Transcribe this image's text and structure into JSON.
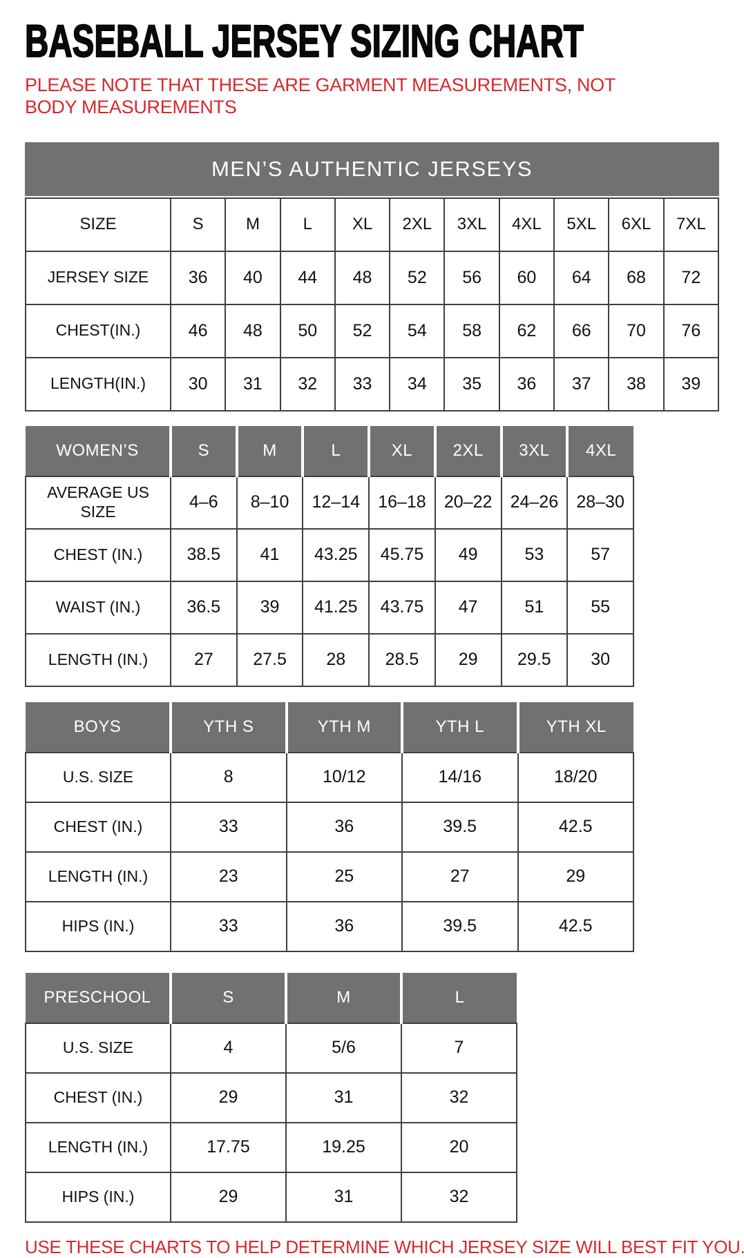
{
  "page": {
    "title": "BASEBALL JERSEY SIZING CHART",
    "note": "PLEASE NOTE THAT THESE ARE GARMENT MEASUREMENTS, NOT BODY MEASUREMENTS",
    "footer": "USE THESE CHARTS TO HELP DETERMINE WHICH JERSEY SIZE WILL BEST FIT YOU.",
    "colors": {
      "accent_red": "#d7282d",
      "header_gray": "#717171",
      "border_gray": "#3f3f3f",
      "text_black": "#111111"
    }
  },
  "tables": {
    "mens": {
      "banner": "MEN’S AUTHENTIC JERSEYS",
      "header": [
        "SIZE",
        "S",
        "M",
        "L",
        "XL",
        "2XL",
        "3XL",
        "4XL",
        "5XL",
        "6XL",
        "7XL"
      ],
      "rows": [
        {
          "label": "JERSEY SIZE",
          "values": [
            "36",
            "40",
            "44",
            "48",
            "52",
            "56",
            "60",
            "64",
            "68",
            "72"
          ]
        },
        {
          "label": "CHEST(IN.)",
          "values": [
            "46",
            "48",
            "50",
            "52",
            "54",
            "58",
            "62",
            "66",
            "70",
            "76"
          ]
        },
        {
          "label": "LENGTH(IN.)",
          "values": [
            "30",
            "31",
            "32",
            "33",
            "34",
            "35",
            "36",
            "37",
            "38",
            "39"
          ]
        }
      ]
    },
    "womens": {
      "header": [
        "WOMEN’S",
        "S",
        "M",
        "L",
        "XL",
        "2XL",
        "3XL",
        "4XL"
      ],
      "rows": [
        {
          "label": "AVERAGE US SIZE",
          "values": [
            "4–6",
            "8–10",
            "12–14",
            "16–18",
            "20–22",
            "24–26",
            "28–30"
          ]
        },
        {
          "label": "CHEST (IN.)",
          "values": [
            "38.5",
            "41",
            "43.25",
            "45.75",
            "49",
            "53",
            "57"
          ]
        },
        {
          "label": "WAIST (IN.)",
          "values": [
            "36.5",
            "39",
            "41.25",
            "43.75",
            "47",
            "51",
            "55"
          ]
        },
        {
          "label": "LENGTH (IN.)",
          "values": [
            "27",
            "27.5",
            "28",
            "28.5",
            "29",
            "29.5",
            "30"
          ]
        }
      ]
    },
    "boys": {
      "header": [
        "BOYS",
        "YTH S",
        "YTH M",
        "YTH L",
        "YTH XL"
      ],
      "rows": [
        {
          "label": "U.S. SIZE",
          "values": [
            "8",
            "10/12",
            "14/16",
            "18/20"
          ]
        },
        {
          "label": "CHEST (IN.)",
          "values": [
            "33",
            "36",
            "39.5",
            "42.5"
          ]
        },
        {
          "label": "LENGTH (IN.)",
          "values": [
            "23",
            "25",
            "27",
            "29"
          ]
        },
        {
          "label": "HIPS (IN.)",
          "values": [
            "33",
            "36",
            "39.5",
            "42.5"
          ]
        }
      ]
    },
    "preschool": {
      "header": [
        "PRESCHOOL",
        "S",
        "M",
        "L"
      ],
      "rows": [
        {
          "label": "U.S. SIZE",
          "values": [
            "4",
            "5/6",
            "7"
          ]
        },
        {
          "label": "CHEST (IN.)",
          "values": [
            "29",
            "31",
            "32"
          ]
        },
        {
          "label": "LENGTH (IN.)",
          "values": [
            "17.75",
            "19.25",
            "20"
          ]
        },
        {
          "label": "HIPS (IN.)",
          "values": [
            "29",
            "31",
            "32"
          ]
        }
      ]
    }
  }
}
